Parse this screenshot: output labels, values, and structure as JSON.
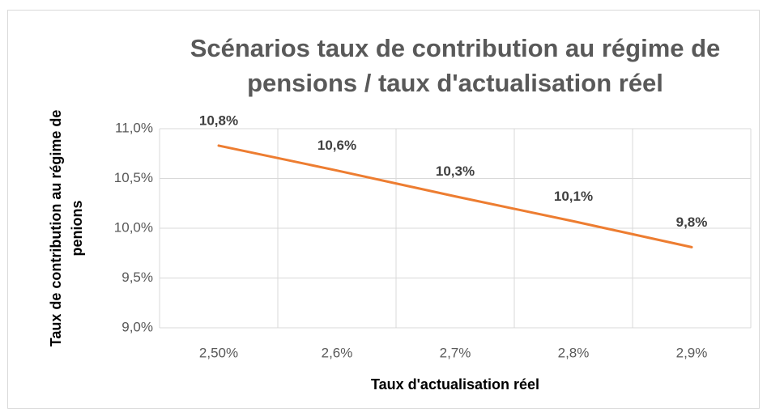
{
  "chart_data": {
    "type": "line",
    "title": [
      "Scénarios taux de contribution au régime de",
      "pensions / taux d'actualisation réel"
    ],
    "x_label": "Taux d'actualisation réel",
    "y_label": [
      "Taux de contribution au régime de",
      "penions"
    ],
    "categories": [
      "2,50%",
      "2,6%",
      "2,7%",
      "2,8%",
      "2,9%"
    ],
    "series": [
      {
        "name": "Taux de contribution",
        "color": "#ed7d31",
        "values": [
          10.83,
          10.58,
          10.32,
          10.07,
          9.81
        ],
        "value_labels": [
          "10,8%",
          "10,6%",
          "10,3%",
          "10,1%",
          "9,8%"
        ]
      }
    ],
    "ylim": [
      9,
      11
    ],
    "yticks": [
      {
        "value": 9,
        "label": "9,0%"
      },
      {
        "value": 9.5,
        "label": "9,5%"
      },
      {
        "value": 10,
        "label": "10,0%"
      },
      {
        "value": 10.5,
        "label": "10,5%"
      },
      {
        "value": 11,
        "label": "11,0%"
      }
    ],
    "grid": true
  }
}
